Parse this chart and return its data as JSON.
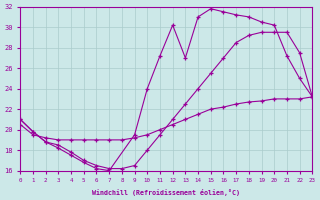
{
  "xlabel": "Windchill (Refroidissement éolien,°C)",
  "xlim": [
    0,
    23
  ],
  "ylim": [
    16,
    32
  ],
  "bg_color": "#cce8e8",
  "line_color": "#990099",
  "grid_color": "#aacccc",
  "xticks": [
    0,
    1,
    2,
    3,
    4,
    5,
    6,
    7,
    8,
    9,
    10,
    11,
    12,
    13,
    14,
    15,
    16,
    17,
    18,
    19,
    20,
    21,
    22,
    23
  ],
  "yticks": [
    16,
    18,
    20,
    22,
    24,
    26,
    28,
    30,
    32
  ],
  "curve_top_x": [
    0,
    1,
    2,
    3,
    4,
    5,
    6,
    7,
    9,
    10,
    11,
    12,
    13,
    14,
    15,
    16,
    17,
    18,
    19,
    20,
    21,
    22,
    23
  ],
  "curve_top_y": [
    21.0,
    19.8,
    18.8,
    18.2,
    17.5,
    16.8,
    16.2,
    16.0,
    19.5,
    24.0,
    27.2,
    30.2,
    27.0,
    31.0,
    31.8,
    31.5,
    31.2,
    31.0,
    30.5,
    30.2,
    27.2,
    25.0,
    23.2
  ],
  "curve_mid_x": [
    0,
    1,
    2,
    3,
    4,
    5,
    6,
    7,
    8,
    9,
    10,
    11,
    12,
    13,
    14,
    15,
    16,
    17,
    18,
    19,
    20,
    21,
    22,
    23
  ],
  "curve_mid_y": [
    21.0,
    19.8,
    18.8,
    18.5,
    17.8,
    17.0,
    16.5,
    16.2,
    16.2,
    16.5,
    18.0,
    19.5,
    21.0,
    22.5,
    24.0,
    25.5,
    27.0,
    28.5,
    29.2,
    29.5,
    29.5,
    29.5,
    27.5,
    23.2
  ],
  "curve_bot_x": [
    0,
    1,
    2,
    3,
    4,
    5,
    6,
    7,
    8,
    9,
    10,
    11,
    12,
    13,
    14,
    15,
    16,
    17,
    18,
    19,
    20,
    21,
    22,
    23
  ],
  "curve_bot_y": [
    20.5,
    19.5,
    19.2,
    19.0,
    19.0,
    19.0,
    19.0,
    19.0,
    19.0,
    19.2,
    19.5,
    20.0,
    20.5,
    21.0,
    21.5,
    22.0,
    22.2,
    22.5,
    22.7,
    22.8,
    23.0,
    23.0,
    23.0,
    23.2
  ]
}
